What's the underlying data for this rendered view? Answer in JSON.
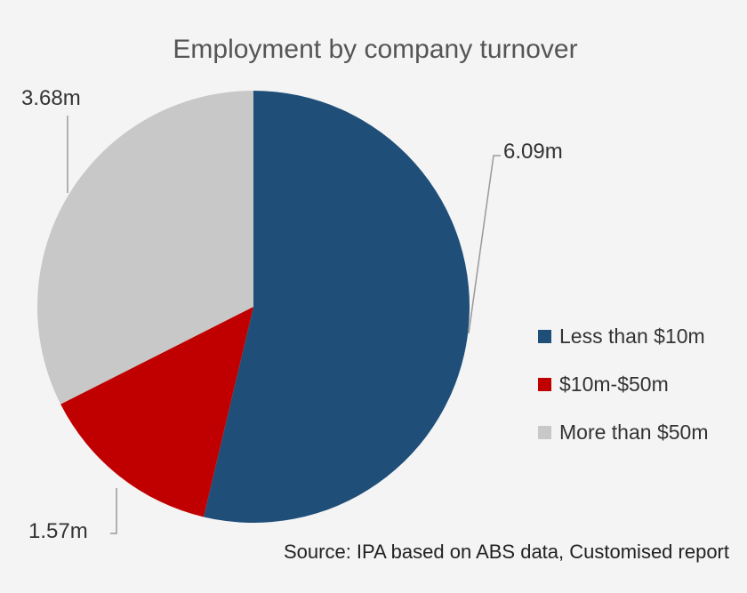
{
  "chart_data": {
    "type": "pie",
    "title": "Employment by company turnover",
    "source": "Source: IPA based on ABS data, Customised report",
    "slices": [
      {
        "label": "Less than $10m",
        "value": 6.09,
        "value_label": "6.09m",
        "color": "#1f4e79"
      },
      {
        "label": "$10m-$50m",
        "value": 1.57,
        "value_label": "1.57m",
        "color": "#c00000"
      },
      {
        "label": "More than $50m",
        "value": 3.68,
        "value_label": "3.68m",
        "color": "#c8c8c8"
      }
    ],
    "legend_position": "right"
  }
}
